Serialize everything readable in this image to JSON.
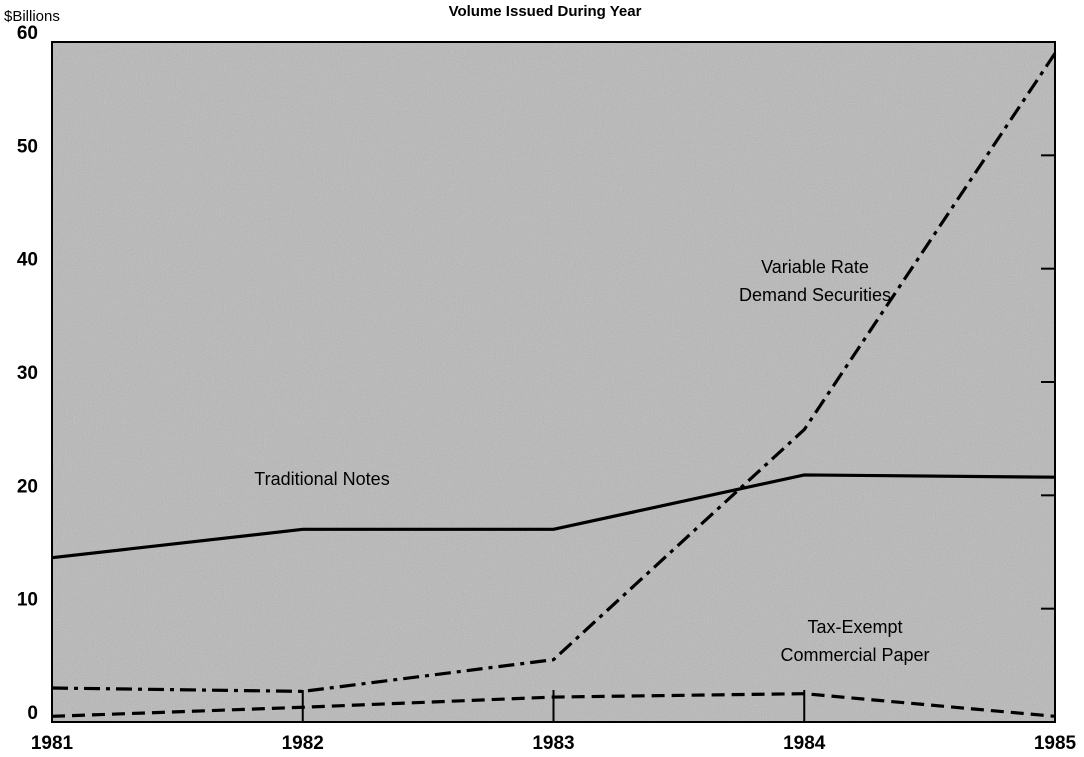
{
  "chart_data": {
    "type": "line",
    "title": "Volume Issued During Year",
    "y_axis_label": "$Billions",
    "x": [
      1981,
      1982,
      1983,
      1984,
      1985
    ],
    "xlim": [
      1981,
      1985
    ],
    "xticks": [
      1981,
      1982,
      1983,
      1984,
      1985
    ],
    "ylim": [
      0,
      60
    ],
    "yticks": [
      0,
      10,
      20,
      30,
      40,
      50,
      60
    ],
    "series": [
      {
        "name": [
          "Traditional Notes"
        ],
        "color": "#000000",
        "dash": "solid",
        "values": [
          14.5,
          17,
          17,
          21.8,
          21.6
        ]
      },
      {
        "name": [
          "Variable Rate",
          "Demand Securities"
        ],
        "color": "#000000",
        "dash": "dash-dot",
        "values": [
          3,
          2.7,
          5.5,
          25.8,
          59
        ]
      },
      {
        "name": [
          "Tax-Exempt",
          "Commercial Paper"
        ],
        "color": "#000000",
        "dash": "dashed",
        "values": [
          0.5,
          1.3,
          2.2,
          2.5,
          0.5
        ]
      }
    ]
  }
}
